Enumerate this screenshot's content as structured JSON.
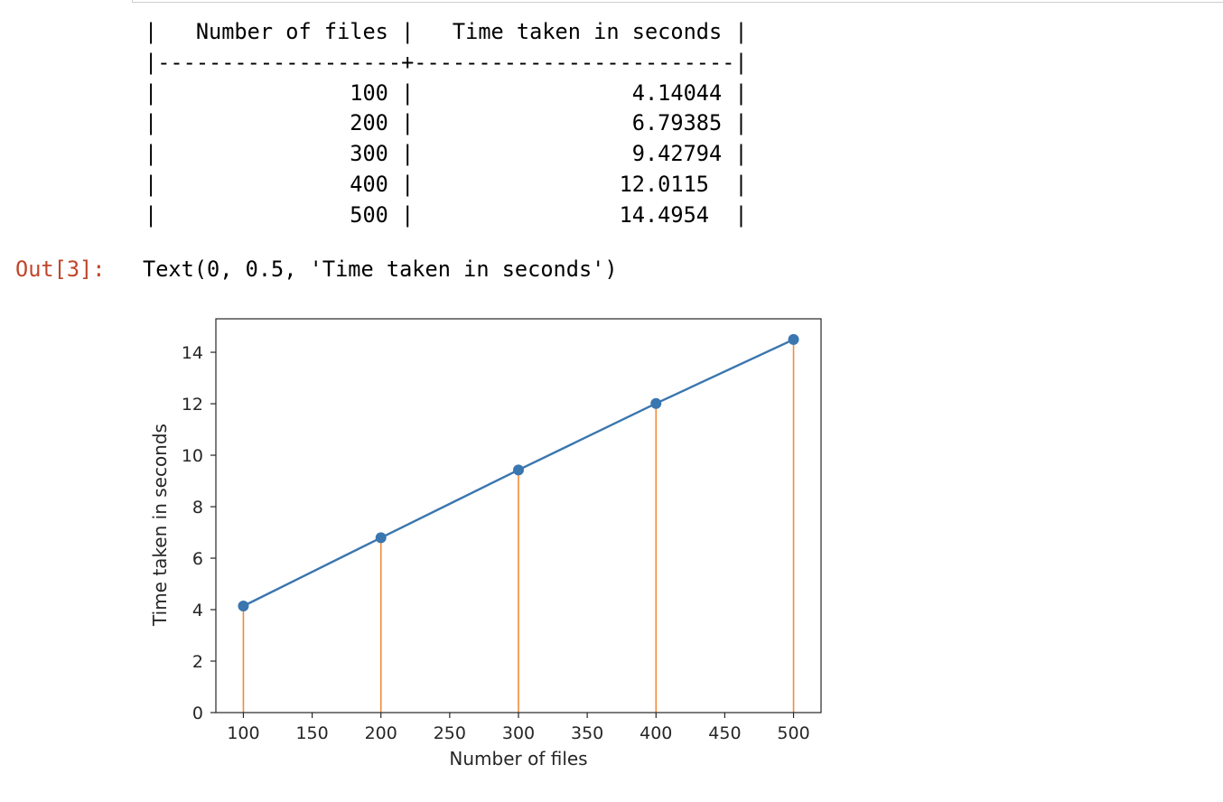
{
  "table": {
    "header_line": "|   Number of files |   Time taken in seconds |",
    "separator_line": "|-------------------+-------------------------|",
    "rows": [
      "|               100 |                 4.14044 |",
      "|               200 |                 6.79385 |",
      "|               300 |                 9.42794 |",
      "|               400 |                12.0115  |",
      "|               500 |                14.4954  |"
    ]
  },
  "output": {
    "prompt": "Out[3]:",
    "text": "Text(0, 0.5, 'Time taken in seconds')"
  },
  "chart_data": {
    "type": "line",
    "x": [
      100,
      200,
      300,
      400,
      500
    ],
    "series": [
      {
        "values": [
          4.14044,
          6.79385,
          9.42794,
          12.0115,
          14.4954
        ],
        "color": "#3a76af",
        "markers": true
      },
      {
        "type": "vertical-stems",
        "values": [
          4.14044,
          6.79385,
          9.42794,
          12.0115,
          14.4954
        ],
        "color": "#f08b3b"
      }
    ],
    "xlabel": "Number of files",
    "ylabel": "Time taken in seconds",
    "xlim": [
      80,
      520
    ],
    "ylim": [
      0,
      15.3
    ],
    "xticks": [
      100,
      150,
      200,
      250,
      300,
      350,
      400,
      450,
      500
    ],
    "yticks": [
      0,
      2,
      4,
      6,
      8,
      10,
      12,
      14
    ],
    "grid": false
  }
}
